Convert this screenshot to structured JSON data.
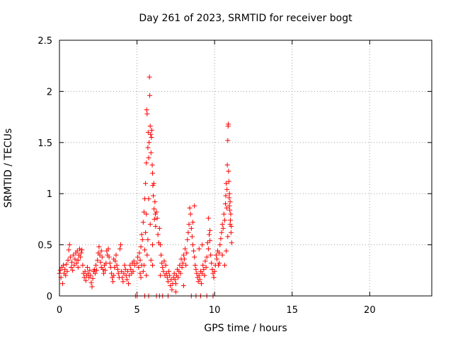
{
  "chart_data": {
    "type": "scatter",
    "title": "Day 261 of 2023, SRMTID for receiver bogt",
    "xlabel": "GPS time / hours",
    "ylabel": "SRMTID / TECUs",
    "xlim": [
      0,
      24
    ],
    "ylim": [
      0,
      2.5
    ],
    "xticks": [
      "0",
      "5",
      "10",
      "15",
      "20"
    ],
    "yticks": [
      "0",
      "0.5",
      "1",
      "1.5",
      "2",
      "2.5"
    ],
    "grid": true,
    "marker": "+",
    "color": "#ff0000",
    "series": [
      {
        "name": "SRMTID",
        "points": [
          [
            0.0,
            0.22
          ],
          [
            0.05,
            0.25
          ],
          [
            0.1,
            0.18
          ],
          [
            0.15,
            0.28
          ],
          [
            0.2,
            0.12
          ],
          [
            0.25,
            0.3
          ],
          [
            0.3,
            0.22
          ],
          [
            0.35,
            0.26
          ],
          [
            0.4,
            0.2
          ],
          [
            0.45,
            0.31
          ],
          [
            0.5,
            0.24
          ],
          [
            0.55,
            0.35
          ],
          [
            0.6,
            0.45
          ],
          [
            0.65,
            0.5
          ],
          [
            0.7,
            0.38
          ],
          [
            0.75,
            0.28
          ],
          [
            0.8,
            0.33
          ],
          [
            0.85,
            0.25
          ],
          [
            0.9,
            0.4
          ],
          [
            0.95,
            0.3
          ],
          [
            1.0,
            0.36
          ],
          [
            1.05,
            0.42
          ],
          [
            1.1,
            0.32
          ],
          [
            1.15,
            0.44
          ],
          [
            1.2,
            0.35
          ],
          [
            1.25,
            0.4
          ],
          [
            1.3,
            0.46
          ],
          [
            1.35,
            0.38
          ],
          [
            1.4,
            0.42
          ],
          [
            1.45,
            0.45
          ],
          [
            1.5,
            0.3
          ],
          [
            1.55,
            0.22
          ],
          [
            1.6,
            0.18
          ],
          [
            1.65,
            0.24
          ],
          [
            1.7,
            0.15
          ],
          [
            1.75,
            0.2
          ],
          [
            1.8,
            0.28
          ],
          [
            1.85,
            0.22
          ],
          [
            1.9,
            0.18
          ],
          [
            1.95,
            0.25
          ],
          [
            2.0,
            0.2
          ],
          [
            2.05,
            0.13
          ],
          [
            2.1,
            0.09
          ],
          [
            2.15,
            0.17
          ],
          [
            2.2,
            0.24
          ],
          [
            2.25,
            0.26
          ],
          [
            2.3,
            0.22
          ],
          [
            2.35,
            0.3
          ],
          [
            2.4,
            0.25
          ],
          [
            2.45,
            0.35
          ],
          [
            2.5,
            0.42
          ],
          [
            2.55,
            0.48
          ],
          [
            2.6,
            0.4
          ],
          [
            2.65,
            0.33
          ],
          [
            2.7,
            0.28
          ],
          [
            2.75,
            0.38
          ],
          [
            2.8,
            0.26
          ],
          [
            2.85,
            0.22
          ],
          [
            2.9,
            0.3
          ],
          [
            2.95,
            0.25
          ],
          [
            3.0,
            0.32
          ],
          [
            3.05,
            0.44
          ],
          [
            3.1,
            0.4
          ],
          [
            3.15,
            0.46
          ],
          [
            3.2,
            0.38
          ],
          [
            3.25,
            0.32
          ],
          [
            3.3,
            0.28
          ],
          [
            3.35,
            0.22
          ],
          [
            3.4,
            0.18
          ],
          [
            3.45,
            0.14
          ],
          [
            3.5,
            0.2
          ],
          [
            3.55,
            0.28
          ],
          [
            3.6,
            0.34
          ],
          [
            3.65,
            0.4
          ],
          [
            3.7,
            0.3
          ],
          [
            3.75,
            0.26
          ],
          [
            3.8,
            0.22
          ],
          [
            3.85,
            0.18
          ],
          [
            3.9,
            0.46
          ],
          [
            3.95,
            0.5
          ],
          [
            4.0,
            0.24
          ],
          [
            4.05,
            0.18
          ],
          [
            4.1,
            0.14
          ],
          [
            4.15,
            0.22
          ],
          [
            4.2,
            0.3
          ],
          [
            4.25,
            0.26
          ],
          [
            4.3,
            0.2
          ],
          [
            4.35,
            0.16
          ],
          [
            4.4,
            0.24
          ],
          [
            4.45,
            0.12
          ],
          [
            4.5,
            0.2
          ],
          [
            4.55,
            0.3
          ],
          [
            4.6,
            0.26
          ],
          [
            4.65,
            0.22
          ],
          [
            4.7,
            0.32
          ],
          [
            4.75,
            0.24
          ],
          [
            4.8,
            0.34
          ],
          [
            4.85,
            0.3
          ],
          [
            4.9,
            0.0
          ],
          [
            5.0,
            0.0
          ],
          [
            5.0,
            0.32
          ],
          [
            5.05,
            0.38
          ],
          [
            5.1,
            0.28
          ],
          [
            5.15,
            0.42
          ],
          [
            5.2,
            0.35
          ],
          [
            5.25,
            0.48
          ],
          [
            5.3,
            0.6
          ],
          [
            5.35,
            0.55
          ],
          [
            5.4,
            0.72
          ],
          [
            5.45,
            0.82
          ],
          [
            5.5,
            0.95
          ],
          [
            5.55,
            1.1
          ],
          [
            5.6,
            1.3
          ],
          [
            5.62,
            1.82
          ],
          [
            5.65,
            1.78
          ],
          [
            5.7,
            1.45
          ],
          [
            5.72,
            1.6
          ],
          [
            5.75,
            1.35
          ],
          [
            5.78,
            1.5
          ],
          [
            5.8,
            2.14
          ],
          [
            5.82,
            1.96
          ],
          [
            5.85,
            1.66
          ],
          [
            5.88,
            1.58
          ],
          [
            5.9,
            1.4
          ],
          [
            5.93,
            1.55
          ],
          [
            5.95,
            1.62
          ],
          [
            5.98,
            1.28
          ],
          [
            6.0,
            1.2
          ],
          [
            6.02,
            1.08
          ],
          [
            6.05,
            0.98
          ],
          [
            6.08,
            1.1
          ],
          [
            6.1,
            0.85
          ],
          [
            6.12,
            0.75
          ],
          [
            6.15,
            0.92
          ],
          [
            6.18,
            0.8
          ],
          [
            6.2,
            0.68
          ],
          [
            6.25,
            0.82
          ],
          [
            6.3,
            0.76
          ],
          [
            6.35,
            0.6
          ],
          [
            6.4,
            0.52
          ],
          [
            5.45,
            0.3
          ],
          [
            5.5,
            0.45
          ],
          [
            5.55,
            0.62
          ],
          [
            5.6,
            0.8
          ],
          [
            5.65,
            0.4
          ],
          [
            5.7,
            0.55
          ],
          [
            5.75,
            0.95
          ],
          [
            5.85,
            0.7
          ],
          [
            5.9,
            0.35
          ],
          [
            6.0,
            0.5
          ],
          [
            6.45,
            0.66
          ],
          [
            6.5,
            0.5
          ],
          [
            6.55,
            0.4
          ],
          [
            6.6,
            0.32
          ],
          [
            6.65,
            0.28
          ],
          [
            6.7,
            0.24
          ],
          [
            6.75,
            0.34
          ],
          [
            6.8,
            0.2
          ],
          [
            6.85,
            0.3
          ],
          [
            6.9,
            0.22
          ],
          [
            6.95,
            0.18
          ],
          [
            7.0,
            0.14
          ],
          [
            7.05,
            0.24
          ],
          [
            7.1,
            0.2
          ],
          [
            7.15,
            0.1
          ],
          [
            7.2,
            0.16
          ],
          [
            7.25,
            0.06
          ],
          [
            7.3,
            0.12
          ],
          [
            7.35,
            0.18
          ],
          [
            7.4,
            0.22
          ],
          [
            7.45,
            0.16
          ],
          [
            7.5,
            0.12
          ],
          [
            7.55,
            0.2
          ],
          [
            7.6,
            0.26
          ],
          [
            7.65,
            0.18
          ],
          [
            7.7,
            0.24
          ],
          [
            7.75,
            0.3
          ],
          [
            7.8,
            0.22
          ],
          [
            7.85,
            0.36
          ],
          [
            7.9,
            0.28
          ],
          [
            5.5,
            0.0
          ],
          [
            5.75,
            0.0
          ],
          [
            6.25,
            0.0
          ],
          [
            6.45,
            0.0
          ],
          [
            6.65,
            0.0
          ],
          [
            7.0,
            0.0
          ],
          [
            7.95,
            0.32
          ],
          [
            8.0,
            0.4
          ],
          [
            8.05,
            0.36
          ],
          [
            8.1,
            0.46
          ],
          [
            8.15,
            0.3
          ],
          [
            8.2,
            0.42
          ],
          [
            8.25,
            0.55
          ],
          [
            8.3,
            0.62
          ],
          [
            8.35,
            0.7
          ],
          [
            8.4,
            0.86
          ],
          [
            8.45,
            0.8
          ],
          [
            8.5,
            0.66
          ],
          [
            8.55,
            0.58
          ],
          [
            8.6,
            0.5
          ],
          [
            8.65,
            0.44
          ],
          [
            8.7,
            0.38
          ],
          [
            8.75,
            0.3
          ],
          [
            8.8,
            0.26
          ],
          [
            8.85,
            0.22
          ],
          [
            8.9,
            0.18
          ],
          [
            8.95,
            0.14
          ],
          [
            9.0,
            0.2
          ],
          [
            9.05,
            0.16
          ],
          [
            9.1,
            0.24
          ],
          [
            9.15,
            0.12
          ],
          [
            9.2,
            0.22
          ],
          [
            9.25,
            0.3
          ],
          [
            9.3,
            0.26
          ],
          [
            9.35,
            0.2
          ],
          [
            9.4,
            0.34
          ],
          [
            9.45,
            0.28
          ],
          [
            9.5,
            0.38
          ],
          [
            9.55,
            0.52
          ],
          [
            9.6,
            0.46
          ],
          [
            9.65,
            0.6
          ],
          [
            9.7,
            0.54
          ],
          [
            9.75,
            0.4
          ],
          [
            9.8,
            0.32
          ],
          [
            9.85,
            0.26
          ],
          [
            9.9,
            0.22
          ],
          [
            9.95,
            0.18
          ],
          [
            10.0,
            0.24
          ],
          [
            10.05,
            0.3
          ],
          [
            10.1,
            0.4
          ],
          [
            10.15,
            0.36
          ],
          [
            10.2,
            0.44
          ],
          [
            10.25,
            0.3
          ],
          [
            10.3,
            0.42
          ],
          [
            10.35,
            0.5
          ],
          [
            10.4,
            0.56
          ],
          [
            8.5,
            0.0
          ],
          [
            8.8,
            0.0
          ],
          [
            9.1,
            0.0
          ],
          [
            9.5,
            0.0
          ],
          [
            9.9,
            0.0
          ],
          [
            10.45,
            0.62
          ],
          [
            10.5,
            0.7
          ],
          [
            10.55,
            0.66
          ],
          [
            10.6,
            0.8
          ],
          [
            10.65,
            0.74
          ],
          [
            10.7,
            0.9
          ],
          [
            10.72,
            0.98
          ],
          [
            10.75,
            1.1
          ],
          [
            10.78,
            0.86
          ],
          [
            10.8,
            1.04
          ],
          [
            10.82,
            1.28
          ],
          [
            10.85,
            1.52
          ],
          [
            10.87,
            1.66
          ],
          [
            10.88,
            1.68
          ],
          [
            10.9,
            1.22
          ],
          [
            10.92,
            1.12
          ],
          [
            10.94,
            0.96
          ],
          [
            10.96,
            1.0
          ],
          [
            10.98,
            0.84
          ],
          [
            11.0,
            0.92
          ],
          [
            11.02,
            0.74
          ],
          [
            11.04,
            0.8
          ],
          [
            11.06,
            0.62
          ],
          [
            11.08,
            0.68
          ],
          [
            11.1,
            0.52
          ],
          [
            11.0,
            0.7
          ],
          [
            10.95,
            0.88
          ],
          [
            10.85,
            0.58
          ],
          [
            10.75,
            0.44
          ],
          [
            10.65,
            0.3
          ],
          [
            5.2,
            0.22
          ],
          [
            5.25,
            0.18
          ],
          [
            5.3,
            0.3
          ],
          [
            5.4,
            0.24
          ],
          [
            5.6,
            0.2
          ],
          [
            6.0,
            0.3
          ],
          [
            6.5,
            0.2
          ],
          [
            7.5,
            0.04
          ],
          [
            8.0,
            0.1
          ],
          [
            8.6,
            0.72
          ],
          [
            8.7,
            0.88
          ],
          [
            9.0,
            0.46
          ],
          [
            9.2,
            0.5
          ],
          [
            9.6,
            0.76
          ],
          [
            9.7,
            0.64
          ],
          [
            10.3,
            0.32
          ],
          [
            10.5,
            0.4
          ],
          [
            1.2,
            0.28
          ],
          [
            2.7,
            0.44
          ],
          [
            3.5,
            0.36
          ]
        ]
      }
    ]
  }
}
